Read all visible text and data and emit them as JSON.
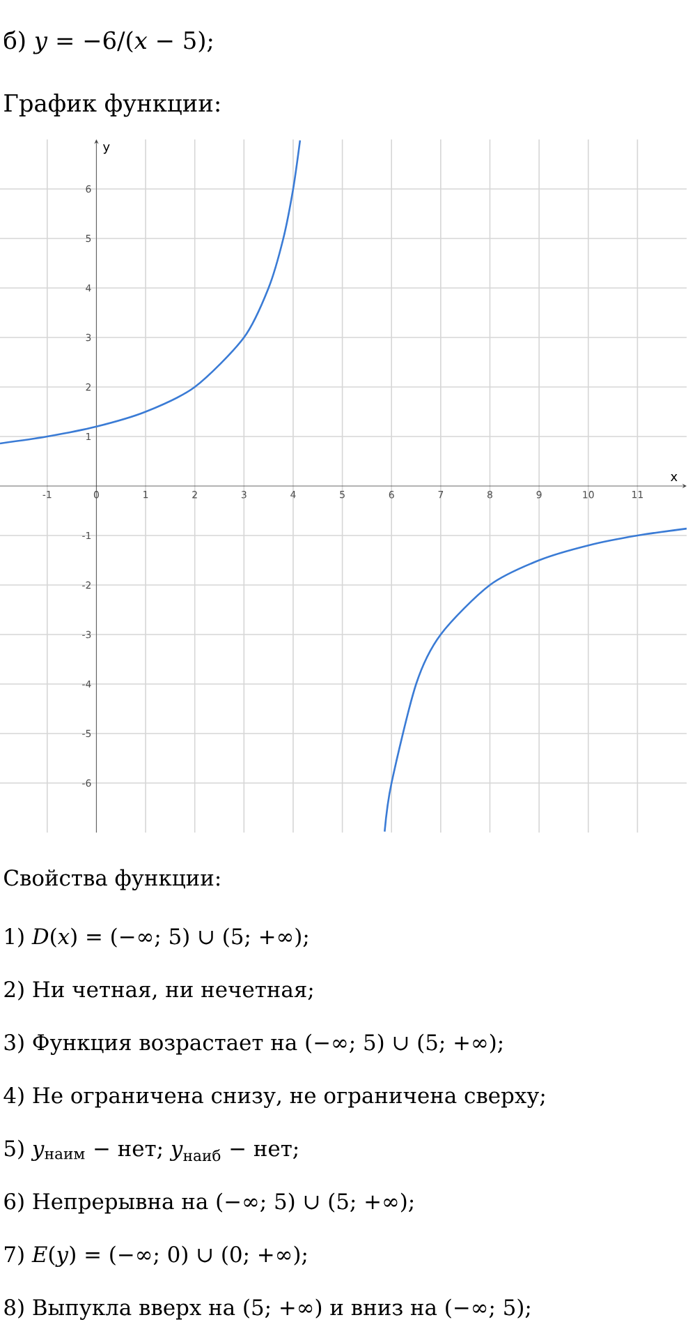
{
  "chart_data": {
    "type": "line",
    "title": "б) *y* = −6/(*x* − 5);",
    "subtitle": "График функции:",
    "xlabel": "x",
    "ylabel": "y",
    "xlim": [
      -1.96,
      12
    ],
    "ylim": [
      -7,
      7
    ],
    "xticks": [
      -1,
      0,
      1,
      2,
      3,
      4,
      5,
      6,
      7,
      8,
      9,
      10,
      11
    ],
    "yticks": [
      -6,
      -5,
      -4,
      -3,
      -2,
      -1,
      {
        "value": 0,
        "label": null
      },
      1,
      2,
      3,
      4,
      5,
      6
    ],
    "grid": true,
    "series": [
      {
        "color": "#3a7bd5",
        "x": [
          -1.96,
          -1,
          0,
          1,
          2,
          3,
          3.5,
          3.8,
          4,
          4.14
        ],
        "values": [
          0.86,
          1,
          1.2,
          1.5,
          2,
          3,
          4,
          5,
          6,
          6.98
        ]
      },
      {
        "color": "#3a7bd5",
        "x": [
          5.86,
          6,
          6.5,
          7,
          8,
          9,
          10,
          11,
          12
        ],
        "values": [
          -6.98,
          -6,
          -4,
          -3,
          -2,
          -1.5,
          -1.2,
          -1,
          -0.86
        ]
      }
    ],
    "annotations": [
      "Свойства функции:",
      "1) *D*(*x*) = (−∞; 5) ∪ (5; +∞);",
      "2) Ни четная, ни нечетная;",
      "3) Функция возрастает на (−∞; 5) ∪ (5; +∞);",
      "4) Не ограничена снизу, не ограничена сверху;",
      "5) *y*$_{наим}$ − нет; *y*$_{наиб}$ − нет;",
      "6) Непрерывна на (−∞; 5) ∪ (5; +∞);",
      "7) *E*(*y*) = (−∞; 0) ∪ (0; +∞);",
      "8) Выпукла вверх на (5; +∞) и вниз на (−∞; 5);"
    ]
  }
}
